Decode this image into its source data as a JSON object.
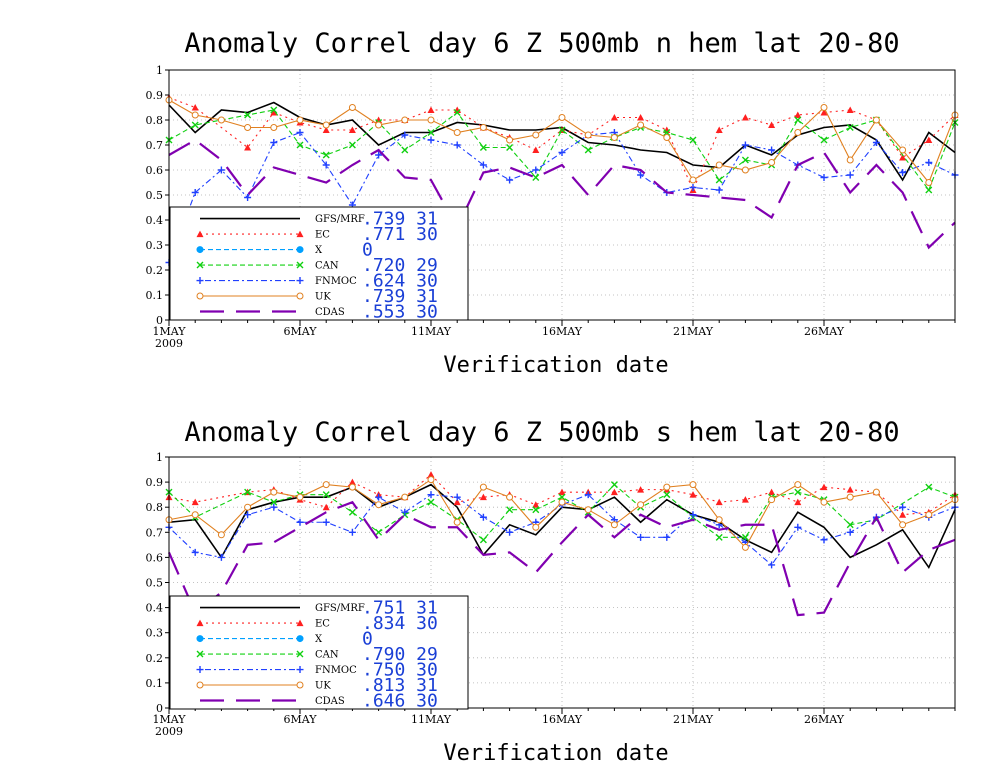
{
  "chart_data": [
    {
      "type": "line",
      "title": "Anomaly Correl  day 6  Z 500mb  n hem  lat 20-80",
      "xlabel": "Verification date",
      "ylim": [
        0,
        1
      ],
      "y_ticks": [
        "0",
        "0.1",
        "0.2",
        "0.3",
        "0.4",
        "0.5",
        "0.6",
        "0.7",
        "0.8",
        "0.9",
        "1"
      ],
      "x_ticks": [
        {
          "day": 1,
          "label": "1MAY",
          "sub": "2009"
        },
        {
          "day": 6,
          "label": "6MAY"
        },
        {
          "day": 11,
          "label": "11MAY"
        },
        {
          "day": 16,
          "label": "16MAY"
        },
        {
          "day": 21,
          "label": "21MAY"
        },
        {
          "day": 26,
          "label": "26MAY"
        }
      ],
      "grid": true,
      "legend_position": "bottom-left",
      "series": [
        {
          "name": "GFS/MRF",
          "legend_value": ".739 31",
          "color": "#000000",
          "style": "solid",
          "marker": "none",
          "values": [
            0.86,
            0.75,
            0.84,
            0.83,
            0.87,
            0.81,
            0.78,
            0.8,
            0.7,
            0.75,
            0.75,
            0.79,
            0.78,
            0.76,
            0.76,
            0.77,
            0.71,
            0.7,
            0.68,
            0.67,
            0.62,
            0.61,
            0.7,
            0.66,
            0.74,
            0.77,
            0.78,
            0.72,
            0.56,
            0.75,
            0.67
          ]
        },
        {
          "name": "EC",
          "legend_value": ".771 30",
          "color": "#ff2020",
          "style": "dotted",
          "marker": "triangle",
          "values": [
            0.89,
            0.85,
            null,
            0.69,
            0.83,
            0.79,
            0.76,
            0.76,
            0.8,
            0.8,
            0.84,
            0.84,
            0.77,
            0.73,
            0.68,
            0.76,
            0.74,
            0.81,
            0.81,
            0.76,
            0.52,
            0.76,
            0.81,
            0.78,
            0.82,
            0.83,
            0.84,
            0.8,
            0.65,
            0.72,
            0.82
          ]
        },
        {
          "name": "X",
          "legend_value": "0",
          "color": "#00a0ff",
          "style": "dashed",
          "marker": "dot",
          "values": []
        },
        {
          "name": "CAN",
          "legend_value": ".720 29",
          "color": "#10d010",
          "style": "dashed",
          "marker": "x",
          "values": [
            0.72,
            0.78,
            null,
            0.82,
            0.84,
            0.7,
            0.66,
            0.7,
            0.79,
            0.68,
            0.75,
            0.83,
            0.69,
            0.69,
            0.57,
            0.76,
            0.68,
            0.73,
            0.77,
            0.75,
            0.72,
            0.56,
            0.64,
            0.62,
            0.8,
            0.72,
            0.77,
            0.8,
            null,
            0.52,
            0.79
          ]
        },
        {
          "name": "FNMOC",
          "legend_value": ".624 30",
          "color": "#2040ff",
          "style": "dashdot",
          "marker": "plus",
          "values": [
            0.23,
            0.51,
            0.6,
            0.49,
            0.71,
            0.75,
            0.62,
            0.46,
            0.66,
            0.74,
            0.72,
            0.7,
            0.62,
            0.56,
            0.6,
            0.67,
            0.74,
            0.75,
            0.58,
            0.51,
            0.53,
            0.52,
            0.7,
            0.68,
            0.62,
            0.57,
            0.58,
            0.71,
            0.59,
            0.63,
            0.58
          ]
        },
        {
          "name": "UK",
          "legend_value": ".739 31",
          "color": "#e08020",
          "style": "solid",
          "marker": "circle",
          "values": [
            0.88,
            0.82,
            0.8,
            0.77,
            0.77,
            0.8,
            0.78,
            0.85,
            0.78,
            0.8,
            0.8,
            0.75,
            0.77,
            0.72,
            0.74,
            0.81,
            0.74,
            0.73,
            0.78,
            0.73,
            0.56,
            0.62,
            0.6,
            0.63,
            0.75,
            0.85,
            0.64,
            0.8,
            0.68,
            0.55,
            0.82
          ]
        },
        {
          "name": "CDAS",
          "legend_value": ".553 30",
          "color": "#8000b0",
          "style": "longdash",
          "marker": "none",
          "values": [
            0.66,
            0.72,
            0.64,
            0.5,
            0.61,
            null,
            0.55,
            0.62,
            0.68,
            0.57,
            0.56,
            0.37,
            0.59,
            0.61,
            0.57,
            0.62,
            0.5,
            0.62,
            0.6,
            0.51,
            0.5,
            0.49,
            0.48,
            0.41,
            0.62,
            0.67,
            0.51,
            0.62,
            0.51,
            0.29,
            0.39
          ]
        }
      ]
    },
    {
      "type": "line",
      "title": "Anomaly Correl  day 6  Z 500mb  s hem  lat 20-80",
      "xlabel": "Verification date",
      "ylim": [
        0,
        1
      ],
      "y_ticks": [
        "0",
        "0.1",
        "0.2",
        "0.3",
        "0.4",
        "0.5",
        "0.6",
        "0.7",
        "0.8",
        "0.9",
        "1"
      ],
      "x_ticks": [
        {
          "day": 1,
          "label": "1MAY",
          "sub": "2009"
        },
        {
          "day": 6,
          "label": "6MAY"
        },
        {
          "day": 11,
          "label": "11MAY"
        },
        {
          "day": 16,
          "label": "16MAY"
        },
        {
          "day": 21,
          "label": "21MAY"
        },
        {
          "day": 26,
          "label": "26MAY"
        }
      ],
      "grid": true,
      "legend_position": "bottom-left",
      "series": [
        {
          "name": "GFS/MRF",
          "legend_value": ".751 31",
          "color": "#000000",
          "style": "solid",
          "marker": "none",
          "values": [
            0.74,
            0.75,
            0.6,
            0.79,
            0.82,
            0.84,
            0.84,
            0.88,
            0.8,
            0.84,
            0.89,
            0.8,
            0.61,
            0.73,
            0.69,
            0.8,
            0.79,
            0.84,
            0.74,
            0.83,
            0.77,
            0.74,
            0.67,
            0.62,
            0.78,
            0.72,
            0.6,
            0.65,
            0.71,
            0.56,
            0.79
          ]
        },
        {
          "name": "EC",
          "legend_value": ".834 30",
          "color": "#ff2020",
          "style": "dotted",
          "marker": "triangle",
          "values": [
            0.84,
            0.82,
            null,
            0.86,
            0.87,
            0.83,
            0.8,
            0.9,
            0.85,
            0.84,
            0.93,
            0.82,
            0.84,
            0.85,
            0.81,
            0.86,
            0.86,
            0.86,
            0.87,
            0.87,
            0.85,
            0.82,
            0.83,
            0.86,
            0.82,
            0.88,
            0.87,
            0.86,
            0.77,
            0.78,
            0.85
          ]
        },
        {
          "name": "X",
          "legend_value": "0",
          "color": "#00a0ff",
          "style": "dashed",
          "marker": "dot",
          "values": []
        },
        {
          "name": "CAN",
          "legend_value": ".790 29",
          "color": "#10d010",
          "style": "dashed",
          "marker": "x",
          "values": [
            0.86,
            0.76,
            null,
            0.86,
            0.82,
            0.85,
            0.85,
            0.78,
            0.7,
            0.77,
            0.82,
            0.75,
            0.67,
            0.79,
            0.79,
            0.84,
            0.78,
            0.89,
            0.8,
            0.85,
            0.76,
            0.68,
            0.68,
            0.84,
            0.86,
            0.83,
            0.73,
            0.75,
            null,
            0.88,
            0.84
          ]
        },
        {
          "name": "FNMOC",
          "legend_value": ".750 30",
          "color": "#2040ff",
          "style": "dashdot",
          "marker": "plus",
          "values": [
            0.72,
            0.62,
            0.6,
            0.77,
            0.8,
            0.74,
            0.74,
            0.7,
            0.84,
            0.78,
            0.85,
            0.84,
            0.76,
            0.7,
            0.74,
            0.81,
            0.85,
            0.75,
            0.68,
            0.68,
            0.77,
            0.73,
            0.66,
            0.57,
            0.72,
            0.67,
            0.7,
            0.76,
            0.8,
            0.76,
            0.8
          ]
        },
        {
          "name": "UK",
          "legend_value": ".813 31",
          "color": "#e08020",
          "style": "solid",
          "marker": "circle",
          "values": [
            0.75,
            0.77,
            0.69,
            0.8,
            0.86,
            0.84,
            0.89,
            0.88,
            0.81,
            0.84,
            0.91,
            0.74,
            0.88,
            0.84,
            0.72,
            0.82,
            0.79,
            0.73,
            0.81,
            0.88,
            0.89,
            0.75,
            0.64,
            0.83,
            0.89,
            0.82,
            0.84,
            0.86,
            0.73,
            0.77,
            0.83
          ]
        },
        {
          "name": "CDAS",
          "legend_value": ".646 30",
          "color": "#8000b0",
          "style": "longdash",
          "marker": "none",
          "values": [
            0.62,
            0.38,
            0.46,
            0.65,
            0.66,
            null,
            0.78,
            0.82,
            0.67,
            0.77,
            0.72,
            0.72,
            0.61,
            0.62,
            0.54,
            0.66,
            0.77,
            0.68,
            0.77,
            0.72,
            0.75,
            0.71,
            0.73,
            0.73,
            0.37,
            0.38,
            0.58,
            0.76,
            0.54,
            0.63,
            0.67
          ]
        }
      ]
    }
  ]
}
